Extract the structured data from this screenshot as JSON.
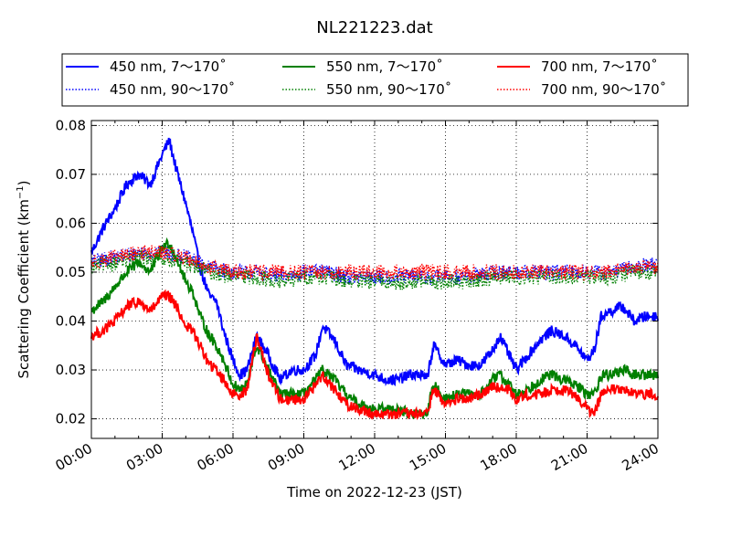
{
  "chart_data": {
    "type": "line",
    "title": "NL221223.dat",
    "xlabel": "Time on 2022-12-23 (JST)",
    "ylabel_main": "Scattering Coefficient (km",
    "ylabel_sup": "−1",
    "ylabel_tail": ")",
    "xlim": [
      0,
      24
    ],
    "ylim": [
      0.016,
      0.081
    ],
    "xticks": [
      0,
      3,
      6,
      9,
      12,
      15,
      18,
      21,
      24
    ],
    "xtick_labels": [
      "00:00",
      "03:00",
      "06:00",
      "09:00",
      "12:00",
      "15:00",
      "18:00",
      "21:00",
      "24:00"
    ],
    "yticks": [
      0.02,
      0.03,
      0.04,
      0.05,
      0.06,
      0.07,
      0.08
    ],
    "ytick_labels": [
      "0.02",
      "0.03",
      "0.04",
      "0.05",
      "0.06",
      "0.07",
      "0.08"
    ],
    "grid": true,
    "legend_position": "top, above plot (3 columns)",
    "series": [
      {
        "name": "450 nm, 7～170˚",
        "color": "#0000ff",
        "style": "solid",
        "x": [
          0,
          0.5,
          1,
          1.5,
          2,
          2.5,
          3,
          3.3,
          3.6,
          4,
          4.3,
          4.6,
          5,
          5.3,
          5.6,
          6,
          6.3,
          6.6,
          7,
          7.5,
          8,
          8.5,
          9,
          9.5,
          9.8,
          10.3,
          10.8,
          11.3,
          12,
          12.5,
          13,
          13.5,
          14,
          14.2,
          14.5,
          15,
          15.5,
          16,
          16.5,
          17,
          17.3,
          17.7,
          18,
          18.5,
          19,
          19.5,
          20,
          20.5,
          21,
          21.3,
          21.6,
          22,
          22.5,
          23,
          23.5,
          24
        ],
        "y": [
          0.054,
          0.059,
          0.063,
          0.068,
          0.07,
          0.068,
          0.074,
          0.077,
          0.071,
          0.064,
          0.058,
          0.051,
          0.045,
          0.044,
          0.038,
          0.032,
          0.029,
          0.03,
          0.037,
          0.033,
          0.028,
          0.03,
          0.03,
          0.033,
          0.039,
          0.036,
          0.031,
          0.03,
          0.029,
          0.028,
          0.028,
          0.029,
          0.029,
          0.028,
          0.035,
          0.031,
          0.032,
          0.031,
          0.031,
          0.034,
          0.037,
          0.033,
          0.03,
          0.033,
          0.036,
          0.038,
          0.037,
          0.035,
          0.032,
          0.034,
          0.041,
          0.042,
          0.043,
          0.04,
          0.041,
          0.041
        ]
      },
      {
        "name": "450 nm, 90～170˚",
        "color": "#0000ff",
        "style": "dotted",
        "x": [
          0,
          1,
          2,
          3,
          4,
          5,
          6,
          7,
          8,
          9,
          10,
          11,
          12,
          13,
          14,
          15,
          16,
          17,
          18,
          19,
          20,
          21,
          22,
          23,
          24
        ],
        "y": [
          0.052,
          0.053,
          0.054,
          0.054,
          0.053,
          0.051,
          0.05,
          0.05,
          0.049,
          0.05,
          0.05,
          0.049,
          0.049,
          0.049,
          0.049,
          0.049,
          0.049,
          0.05,
          0.05,
          0.05,
          0.05,
          0.05,
          0.05,
          0.051,
          0.052
        ]
      },
      {
        "name": "550 nm, 7～170˚",
        "color": "#008000",
        "style": "solid",
        "x": [
          0,
          0.5,
          1,
          1.5,
          2,
          2.5,
          3,
          3.3,
          3.6,
          4,
          4.3,
          4.6,
          5,
          5.3,
          5.6,
          6,
          6.3,
          6.6,
          7,
          7.5,
          8,
          8.5,
          9,
          9.5,
          9.8,
          10.3,
          10.8,
          11.3,
          12,
          12.5,
          13,
          13.5,
          14,
          14.2,
          14.5,
          15,
          15.5,
          16,
          16.5,
          17,
          17.3,
          17.7,
          18,
          18.5,
          19,
          19.5,
          20,
          20.5,
          21,
          21.3,
          21.6,
          22,
          22.5,
          23,
          23.5,
          24
        ],
        "y": [
          0.042,
          0.044,
          0.047,
          0.05,
          0.052,
          0.05,
          0.055,
          0.056,
          0.053,
          0.048,
          0.046,
          0.041,
          0.037,
          0.035,
          0.032,
          0.027,
          0.026,
          0.027,
          0.035,
          0.03,
          0.025,
          0.025,
          0.025,
          0.028,
          0.03,
          0.028,
          0.025,
          0.023,
          0.022,
          0.022,
          0.022,
          0.021,
          0.021,
          0.021,
          0.027,
          0.024,
          0.025,
          0.025,
          0.025,
          0.028,
          0.029,
          0.027,
          0.025,
          0.026,
          0.028,
          0.029,
          0.028,
          0.027,
          0.025,
          0.025,
          0.029,
          0.029,
          0.03,
          0.029,
          0.029,
          0.029
        ]
      },
      {
        "name": "550 nm, 90～170˚",
        "color": "#008000",
        "style": "dotted",
        "x": [
          0,
          1,
          2,
          3,
          4,
          5,
          6,
          7,
          8,
          9,
          10,
          11,
          12,
          13,
          14,
          15,
          16,
          17,
          18,
          19,
          20,
          21,
          22,
          23,
          24
        ],
        "y": [
          0.051,
          0.052,
          0.053,
          0.053,
          0.052,
          0.05,
          0.049,
          0.049,
          0.048,
          0.049,
          0.049,
          0.048,
          0.048,
          0.048,
          0.048,
          0.048,
          0.048,
          0.049,
          0.049,
          0.049,
          0.049,
          0.049,
          0.049,
          0.05,
          0.05
        ]
      },
      {
        "name": "700 nm, 7～170˚",
        "color": "#ff0000",
        "style": "solid",
        "x": [
          0,
          0.5,
          1,
          1.5,
          2,
          2.5,
          3,
          3.3,
          3.6,
          4,
          4.3,
          4.6,
          5,
          5.3,
          5.6,
          6,
          6.3,
          6.6,
          7,
          7.5,
          8,
          8.5,
          9,
          9.5,
          9.8,
          10.3,
          10.8,
          11.3,
          12,
          12.5,
          13,
          13.5,
          14,
          14.2,
          14.5,
          15,
          15.5,
          16,
          16.5,
          17,
          17.3,
          17.7,
          18,
          18.5,
          19,
          19.5,
          20,
          20.5,
          21,
          21.3,
          21.6,
          22,
          22.5,
          23,
          23.5,
          24
        ],
        "y": [
          0.037,
          0.038,
          0.04,
          0.043,
          0.044,
          0.042,
          0.045,
          0.045,
          0.043,
          0.039,
          0.038,
          0.035,
          0.031,
          0.03,
          0.028,
          0.025,
          0.025,
          0.026,
          0.037,
          0.029,
          0.024,
          0.024,
          0.024,
          0.027,
          0.029,
          0.026,
          0.023,
          0.022,
          0.021,
          0.021,
          0.021,
          0.021,
          0.021,
          0.021,
          0.026,
          0.023,
          0.024,
          0.024,
          0.025,
          0.027,
          0.026,
          0.026,
          0.024,
          0.025,
          0.025,
          0.026,
          0.026,
          0.025,
          0.022,
          0.021,
          0.025,
          0.026,
          0.026,
          0.025,
          0.025,
          0.025
        ]
      },
      {
        "name": "700 nm, 90～170˚",
        "color": "#ff0000",
        "style": "dotted",
        "x": [
          0,
          1,
          2,
          3,
          4,
          5,
          6,
          7,
          8,
          9,
          10,
          11,
          12,
          13,
          14,
          15,
          16,
          17,
          18,
          19,
          20,
          21,
          22,
          23,
          24
        ],
        "y": [
          0.052,
          0.053,
          0.054,
          0.054,
          0.053,
          0.051,
          0.05,
          0.05,
          0.05,
          0.05,
          0.05,
          0.05,
          0.05,
          0.05,
          0.05,
          0.05,
          0.05,
          0.05,
          0.05,
          0.05,
          0.05,
          0.05,
          0.05,
          0.051,
          0.051
        ]
      }
    ]
  }
}
